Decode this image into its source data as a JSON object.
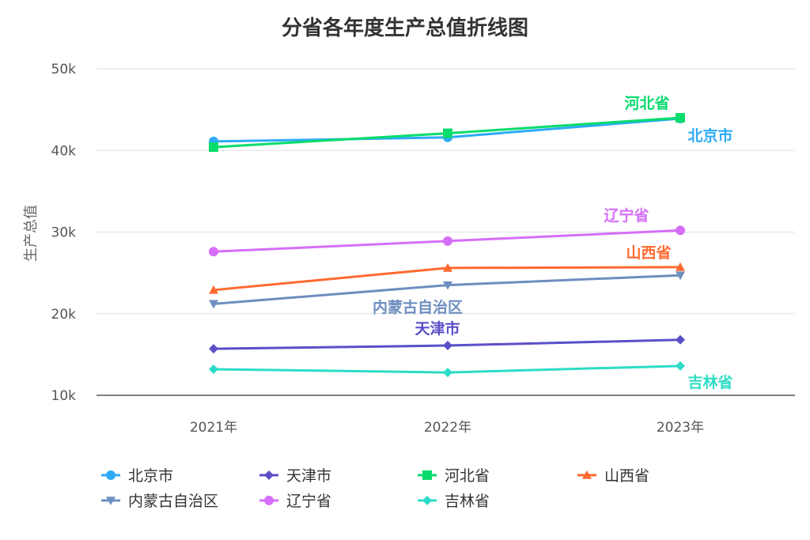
{
  "chart_data": {
    "type": "line",
    "title": "分省各年度生产总值折线图",
    "xlabel": "",
    "ylabel": "生产总值",
    "categories": [
      "2021年",
      "2022年",
      "2023年"
    ],
    "ylim": [
      10000,
      50000
    ],
    "yticks": [
      10000,
      20000,
      30000,
      40000,
      50000
    ],
    "ytick_labels": [
      "10k",
      "20k",
      "30k",
      "40k",
      "50k"
    ],
    "grid": true,
    "legend": "bottom",
    "series": [
      {
        "name": "北京市",
        "values": [
          41100,
          41600,
          43900
        ],
        "color": "#2eaaf7",
        "marker": "circle"
      },
      {
        "name": "天津市",
        "values": [
          15700,
          16100,
          16800
        ],
        "color": "#5a4fc8",
        "marker": "diamond"
      },
      {
        "name": "河北省",
        "values": [
          40400,
          42100,
          44000
        ],
        "color": "#08dc6c",
        "marker": "square"
      },
      {
        "name": "山西省",
        "values": [
          22900,
          25600,
          25700
        ],
        "color": "#ff6a30",
        "marker": "triangle"
      },
      {
        "name": "内蒙古自治区",
        "values": [
          21200,
          23500,
          24700
        ],
        "color": "#6d8ec0",
        "marker": "triangle-down"
      },
      {
        "name": "辽宁省",
        "values": [
          27600,
          28900,
          30200
        ],
        "color": "#d56ef8",
        "marker": "circle"
      },
      {
        "name": "吉林省",
        "values": [
          13200,
          12800,
          13600
        ],
        "color": "#2ddcc6",
        "marker": "diamond"
      }
    ]
  }
}
